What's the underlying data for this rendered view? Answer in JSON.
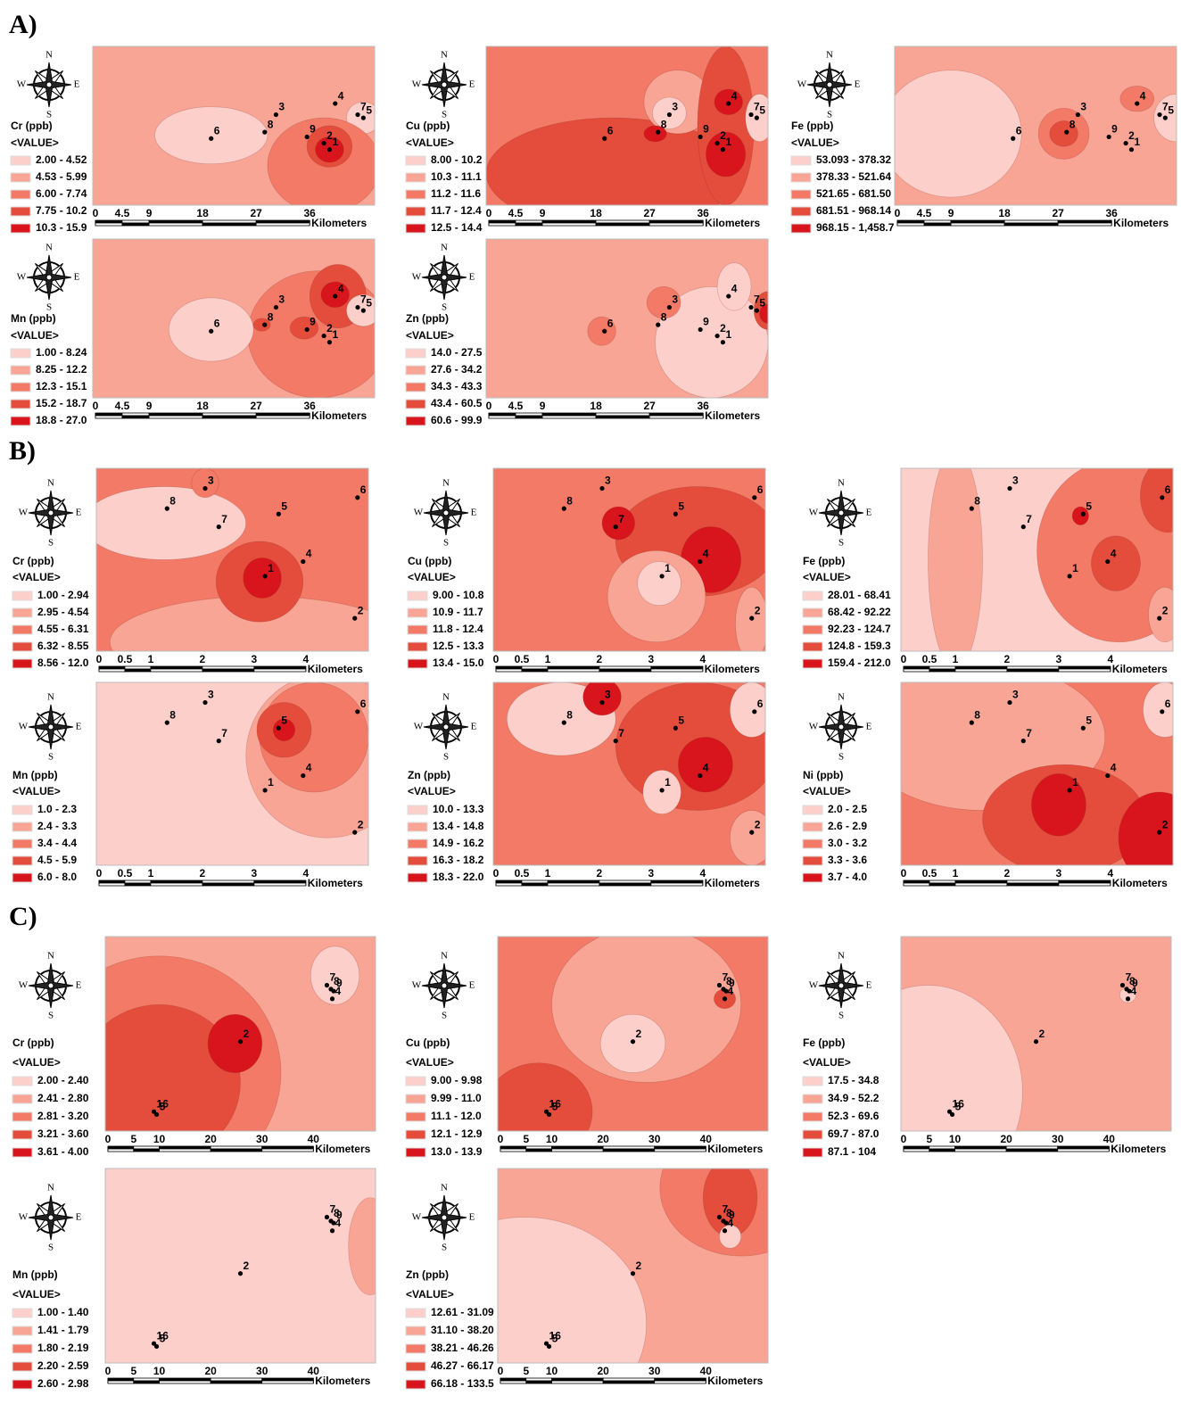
{
  "compass": {
    "n": "N",
    "s": "S",
    "e": "E",
    "w": "W"
  },
  "value_header": "<VALUE>",
  "scale_unit": "Kilometers",
  "colors": [
    "#fccfca",
    "#f9a596",
    "#f27a66",
    "#e44c3b",
    "#d8141c"
  ],
  "sections": [
    {
      "label": "A)",
      "scale_ticks": [
        0,
        4.5,
        9,
        18,
        27,
        36
      ],
      "points": [
        "1",
        "2",
        "3",
        "4",
        "5",
        "6",
        "7",
        "8",
        "9"
      ],
      "panels": [
        {
          "title": "Cr (ppb)",
          "legend": [
            "2.00 - 4.52",
            "4.53 - 5.99",
            "6.00 - 7.74",
            "7.75 - 10.2",
            "10.3 - 15.9"
          ]
        },
        {
          "title": "Cu (ppb)",
          "legend": [
            "8.00 - 10.2",
            "10.3 - 11.1",
            "11.2 - 11.6",
            "11.7 - 12.4",
            "12.5 - 14.4"
          ]
        },
        {
          "title": "Fe (ppb)",
          "legend": [
            "53.093 - 378.32",
            "378.33 - 521.64",
            "521.65 - 681.50",
            "681.51 - 968.14",
            "968.15 - 1,458.7"
          ]
        },
        {
          "title": "Mn (ppb)",
          "legend": [
            "1.00 - 8.24",
            "8.25 - 12.2",
            "12.3 - 15.1",
            "15.2 - 18.7",
            "18.8 - 27.0"
          ]
        },
        {
          "title": "Zn (ppb)",
          "legend": [
            "14.0 - 27.5",
            "27.6 - 34.2",
            "34.3 - 43.3",
            "43.4 - 60.5",
            "60.6 - 99.9"
          ]
        }
      ]
    },
    {
      "label": "B)",
      "scale_ticks": [
        0,
        0.5,
        1,
        2,
        3,
        4
      ],
      "points": [
        "1",
        "2",
        "3",
        "4",
        "5",
        "6",
        "7",
        "8"
      ],
      "panels": [
        {
          "title": "Cr (ppb)",
          "legend": [
            "1.00 - 2.94",
            "2.95 - 4.54",
            "4.55 - 6.31",
            "6.32 - 8.55",
            "8.56 - 12.0"
          ]
        },
        {
          "title": "Cu (ppb)",
          "legend": [
            "9.00 - 10.8",
            "10.9 - 11.7",
            "11.8 - 12.4",
            "12.5 - 13.3",
            "13.4 - 15.0"
          ]
        },
        {
          "title": "Fe (ppb)",
          "legend": [
            "28.01 - 68.41",
            "68.42 - 92.22",
            "92.23 - 124.7",
            "124.8 - 159.3",
            "159.4 - 212.0"
          ]
        },
        {
          "title": "Mn (ppb)",
          "legend": [
            "1.0 - 2.3",
            "2.4 - 3.3",
            "3.4 - 4.4",
            "4.5 - 5.9",
            "6.0 - 8.0"
          ]
        },
        {
          "title": "Zn (ppb)",
          "legend": [
            "10.0 - 13.3",
            "13.4 - 14.8",
            "14.9 - 16.2",
            "16.3 - 18.2",
            "18.3 - 22.0"
          ]
        },
        {
          "title": "Ni (ppb)",
          "legend": [
            "2.0 - 2.5",
            "2.6 - 2.9",
            "3.0 - 3.2",
            "3.3 - 3.6",
            "3.7 - 4.0"
          ]
        }
      ]
    },
    {
      "label": "C)",
      "scale_ticks": [
        0,
        5,
        10,
        20,
        30,
        40
      ],
      "points": [
        "7",
        "8",
        "9",
        "4",
        "2",
        "16",
        "5"
      ],
      "panels": [
        {
          "title": "Cr (ppb)",
          "legend": [
            "2.00 - 2.40",
            "2.41 - 2.80",
            "2.81 - 3.20",
            "3.21 - 3.60",
            "3.61 - 4.00"
          ]
        },
        {
          "title": "Cu (ppb)",
          "legend": [
            "9.00 - 9.98",
            "9.99 - 11.0",
            "11.1 - 12.0",
            "12.1 - 12.9",
            "13.0 - 13.9"
          ]
        },
        {
          "title": "Fe (ppb)",
          "legend": [
            "17.5 - 34.8",
            "34.9 - 52.2",
            "52.3 - 69.6",
            "69.7 - 87.0",
            "87.1 - 104"
          ]
        },
        {
          "title": "Mn (ppb)",
          "legend": [
            "1.00 - 1.40",
            "1.41 - 1.79",
            "1.80 - 2.19",
            "2.20 - 2.59",
            "2.60 - 2.98"
          ]
        },
        {
          "title": "Zn (ppb)",
          "legend": [
            "12.61 - 31.09",
            "31.10 - 38.20",
            "38.21 - 46.26",
            "46.27 - 66.17",
            "66.18 - 133.5"
          ]
        }
      ]
    }
  ]
}
